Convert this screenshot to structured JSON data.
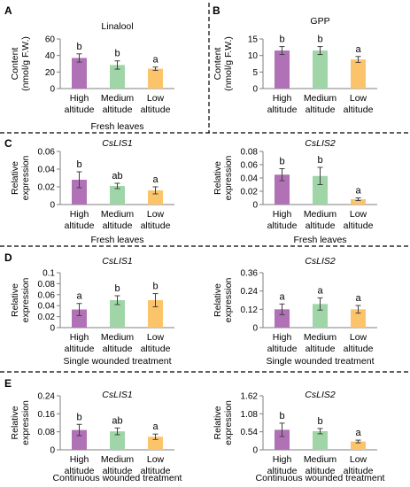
{
  "panel_letters": [
    "A",
    "B",
    "C",
    "D",
    "E"
  ],
  "colors": {
    "high_altitude": "#b071b6",
    "medium_altitude": "#9fd5a7",
    "low_altitude": "#fcc46a"
  },
  "chart_data": [
    {
      "type": "bar",
      "panel": "A",
      "title": "Linalool",
      "title_italic": false,
      "ylabel": [
        "Content",
        "(nmol/g F.W.)"
      ],
      "xlabel": "Fresh leaves",
      "categories": [
        [
          "High",
          "altitude"
        ],
        [
          "Medium",
          "altitude"
        ],
        [
          "Low",
          "altitude"
        ]
      ],
      "values": [
        37,
        28.5,
        24
      ],
      "errors": [
        5,
        5,
        2
      ],
      "significance": [
        "b",
        "b",
        "a"
      ],
      "ylim": [
        0,
        60
      ],
      "yticks": [
        "0",
        "20",
        "40",
        "60"
      ]
    },
    {
      "type": "bar",
      "panel": "B",
      "title": "GPP",
      "title_italic": false,
      "ylabel": [
        "Content",
        "(nmol/g F.W.)"
      ],
      "xlabel": "",
      "categories": [
        [
          "High",
          "altitude"
        ],
        [
          "Medium",
          "altitude"
        ],
        [
          "Low",
          "altitude"
        ]
      ],
      "values": [
        11.5,
        11.5,
        8.8
      ],
      "errors": [
        1.2,
        1.2,
        0.9
      ],
      "significance": [
        "b",
        "b",
        "a"
      ],
      "ylim": [
        0,
        15
      ],
      "yticks": [
        "0",
        "5",
        "10",
        "15"
      ]
    },
    {
      "type": "bar",
      "panel": "C",
      "title": "CsLIS1",
      "title_italic": true,
      "ylabel": [
        "Relative",
        "expression"
      ],
      "xlabel": "Fresh leaves",
      "categories": [
        [
          "High",
          "altitude"
        ],
        [
          "Medium",
          "altitude"
        ],
        [
          "Low",
          "altitude"
        ]
      ],
      "values": [
        0.028,
        0.021,
        0.016
      ],
      "errors": [
        0.009,
        0.003,
        0.004
      ],
      "significance": [
        "b",
        "ab",
        "a"
      ],
      "ylim": [
        0,
        0.06
      ],
      "yticks": [
        "0",
        "0.02",
        "0.04",
        "0.06"
      ]
    },
    {
      "type": "bar",
      "panel": "C",
      "title": "CsLIS2",
      "title_italic": true,
      "ylabel": [
        "Relative",
        "expression"
      ],
      "xlabel": "Fresh leaves",
      "categories": [
        [
          "High",
          "altitude"
        ],
        [
          "Medium",
          "altitude"
        ],
        [
          "Low",
          "altitude"
        ]
      ],
      "values": [
        0.045,
        0.043,
        0.008
      ],
      "errors": [
        0.009,
        0.013,
        0.002
      ],
      "significance": [
        "b",
        "b",
        "a"
      ],
      "ylim": [
        0,
        0.08
      ],
      "yticks": [
        "0",
        "0.02",
        "0.04",
        "0.06",
        "0.08"
      ]
    },
    {
      "type": "bar",
      "panel": "D",
      "title": "CsLIS1",
      "title_italic": true,
      "ylabel": [
        "Relative",
        "expression"
      ],
      "xlabel": "Single wounded treatment",
      "categories": [
        [
          "High",
          "altitude"
        ],
        [
          "Medium",
          "altitude"
        ],
        [
          "Low",
          "altitude"
        ]
      ],
      "values": [
        0.033,
        0.05,
        0.05
      ],
      "errors": [
        0.011,
        0.008,
        0.012
      ],
      "significance": [
        "a",
        "b",
        "b"
      ],
      "ylim": [
        0,
        0.1
      ],
      "yticks": [
        "0",
        "0.02",
        "0.04",
        "0.06",
        "0.08",
        "0.1"
      ]
    },
    {
      "type": "bar",
      "panel": "D",
      "title": "CsLIS2",
      "title_italic": true,
      "ylabel": [
        "Relative",
        "expression"
      ],
      "xlabel": "Single wounded treatment",
      "categories": [
        [
          "High",
          "altitude"
        ],
        [
          "Medium",
          "altitude"
        ],
        [
          "Low",
          "altitude"
        ]
      ],
      "values": [
        0.12,
        0.155,
        0.12
      ],
      "errors": [
        0.035,
        0.04,
        0.025
      ],
      "significance": [
        "a",
        "a",
        "a"
      ],
      "ylim": [
        0,
        0.36
      ],
      "yticks": [
        "0",
        "0.12",
        "0.24",
        "0.36"
      ]
    },
    {
      "type": "bar",
      "panel": "E",
      "title": "CsLIS1",
      "title_italic": true,
      "ylabel": [
        "Relative",
        "expression"
      ],
      "xlabel": "Continuous wounded treatment",
      "categories": [
        [
          "High",
          "altitude"
        ],
        [
          "Medium",
          "altitude"
        ],
        [
          "Low",
          "altitude"
        ]
      ],
      "values": [
        0.088,
        0.082,
        0.058
      ],
      "errors": [
        0.025,
        0.015,
        0.012
      ],
      "significance": [
        "b",
        "ab",
        "a"
      ],
      "ylim": [
        0,
        0.24
      ],
      "yticks": [
        "0",
        "0.08",
        "0.16",
        "0.24"
      ]
    },
    {
      "type": "bar",
      "panel": "E",
      "title": "CsLIS2",
      "title_italic": true,
      "ylabel": [
        "Relative",
        "expression"
      ],
      "xlabel": "Continuous wounded treatment",
      "categories": [
        [
          "High",
          "altitude"
        ],
        [
          "Medium",
          "altitude"
        ],
        [
          "Low",
          "altitude"
        ]
      ],
      "values": [
        0.6,
        0.56,
        0.25
      ],
      "errors": [
        0.2,
        0.08,
        0.04
      ],
      "significance": [
        "b",
        "b",
        "a"
      ],
      "ylim": [
        0,
        1.62
      ],
      "yticks": [
        "0",
        "0.54",
        "1.08",
        "1.62"
      ]
    }
  ]
}
